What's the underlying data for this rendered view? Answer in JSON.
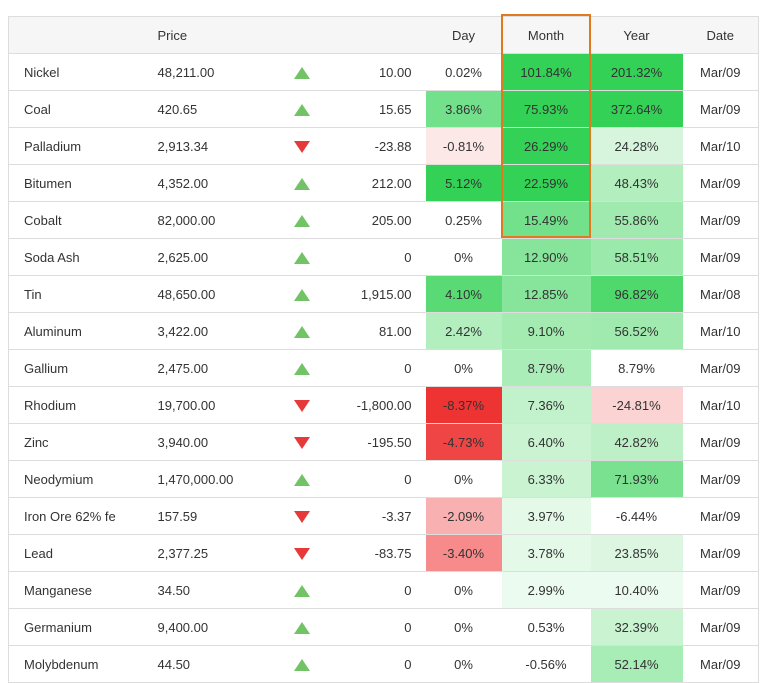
{
  "header": {
    "name": "",
    "price": "Price",
    "arrow": "",
    "change": "",
    "day": "Day",
    "month": "Month",
    "year": "Year",
    "date": "Date"
  },
  "highlight": {
    "column": "Month",
    "color": "#e07a1f"
  },
  "rows": [
    {
      "name": "Nickel",
      "price": "48,211.00",
      "dir": "up",
      "change": "10.00",
      "day": "0.02%",
      "month": "101.84%",
      "year": "201.32%",
      "date": "Mar/09",
      "day_bg": "#ffffff",
      "month_bg": "#33d155",
      "year_bg": "#33d155"
    },
    {
      "name": "Coal",
      "price": "420.65",
      "dir": "up",
      "change": "15.65",
      "day": "3.86%",
      "month": "75.93%",
      "year": "372.64%",
      "date": "Mar/09",
      "day_bg": "#73e08b",
      "month_bg": "#33d155",
      "year_bg": "#33d155"
    },
    {
      "name": "Palladium",
      "price": "2,913.34",
      "dir": "down",
      "change": "-23.88",
      "day": "-0.81%",
      "month": "26.29%",
      "year": "24.28%",
      "date": "Mar/10",
      "day_bg": "#fde8e8",
      "month_bg": "#33d155",
      "year_bg": "#d7f5dd"
    },
    {
      "name": "Bitumen",
      "price": "4,352.00",
      "dir": "up",
      "change": "212.00",
      "day": "5.12%",
      "month": "22.59%",
      "year": "48.43%",
      "date": "Mar/09",
      "day_bg": "#33d155",
      "month_bg": "#33d155",
      "year_bg": "#b3eebf"
    },
    {
      "name": "Cobalt",
      "price": "82,000.00",
      "dir": "up",
      "change": "205.00",
      "day": "0.25%",
      "month": "15.49%",
      "year": "55.86%",
      "date": "Mar/09",
      "day_bg": "#ffffff",
      "month_bg": "#73e08b",
      "year_bg": "#a0eaaf"
    },
    {
      "name": "Soda Ash",
      "price": "2,625.00",
      "dir": "up",
      "change": "0",
      "day": "0%",
      "month": "12.90%",
      "year": "58.51%",
      "date": "Mar/09",
      "day_bg": "#ffffff",
      "month_bg": "#86e59a",
      "year_bg": "#9be9ab"
    },
    {
      "name": "Tin",
      "price": "48,650.00",
      "dir": "up",
      "change": "1,915.00",
      "day": "4.10%",
      "month": "12.85%",
      "year": "96.82%",
      "date": "Mar/08",
      "day_bg": "#59da74",
      "month_bg": "#86e59a",
      "year_bg": "#4fd96c"
    },
    {
      "name": "Aluminum",
      "price": "3,422.00",
      "dir": "up",
      "change": "81.00",
      "day": "2.42%",
      "month": "9.10%",
      "year": "56.52%",
      "date": "Mar/10",
      "day_bg": "#b3eebf",
      "month_bg": "#a3ebb1",
      "year_bg": "#a0eaaf"
    },
    {
      "name": "Gallium",
      "price": "2,475.00",
      "dir": "up",
      "change": "0",
      "day": "0%",
      "month": "8.79%",
      "year": "8.79%",
      "date": "Mar/09",
      "day_bg": "#ffffff",
      "month_bg": "#abedb8",
      "year_bg": "#ffffff"
    },
    {
      "name": "Rhodium",
      "price": "19,700.00",
      "dir": "down",
      "change": "-1,800.00",
      "day": "-8.37%",
      "month": "7.36%",
      "year": "-24.81%",
      "date": "Mar/10",
      "day_bg": "#ee3333",
      "month_bg": "#c2f2cb",
      "year_bg": "#fbd3d3"
    },
    {
      "name": "Zinc",
      "price": "3,940.00",
      "dir": "down",
      "change": "-195.50",
      "day": "-4.73%",
      "month": "6.40%",
      "year": "42.82%",
      "date": "Mar/09",
      "day_bg": "#ef4545",
      "month_bg": "#c9f3d1",
      "year_bg": "#bdf0c7"
    },
    {
      "name": "Neodymium",
      "price": "1,470,000.00",
      "dir": "up",
      "change": "0",
      "day": "0%",
      "month": "6.33%",
      "year": "71.93%",
      "date": "Mar/09",
      "day_bg": "#ffffff",
      "month_bg": "#c9f3d1",
      "year_bg": "#79e190"
    },
    {
      "name": "Iron Ore 62% fe",
      "price": "157.59",
      "dir": "down",
      "change": "-3.37",
      "day": "-2.09%",
      "month": "3.97%",
      "year": "-6.44%",
      "date": "Mar/09",
      "day_bg": "#f9b0b0",
      "month_bg": "#e4f9e8",
      "year_bg": "#ffffff"
    },
    {
      "name": "Lead",
      "price": "2,377.25",
      "dir": "down",
      "change": "-83.75",
      "day": "-3.40%",
      "month": "3.78%",
      "year": "23.85%",
      "date": "Mar/09",
      "day_bg": "#f78a8a",
      "month_bg": "#e4f9e8",
      "year_bg": "#dcf6e1"
    },
    {
      "name": "Manganese",
      "price": "34.50",
      "dir": "up",
      "change": "0",
      "day": "0%",
      "month": "2.99%",
      "year": "10.40%",
      "date": "Mar/09",
      "day_bg": "#ffffff",
      "month_bg": "#ecfbef",
      "year_bg": "#ecfbef"
    },
    {
      "name": "Germanium",
      "price": "9,400.00",
      "dir": "up",
      "change": "0",
      "day": "0%",
      "month": "0.53%",
      "year": "32.39%",
      "date": "Mar/09",
      "day_bg": "#ffffff",
      "month_bg": "#ffffff",
      "year_bg": "#c9f3d1"
    },
    {
      "name": "Molybdenum",
      "price": "44.50",
      "dir": "up",
      "change": "0",
      "day": "0%",
      "month": "-0.56%",
      "year": "52.14%",
      "date": "Mar/09",
      "day_bg": "#ffffff",
      "month_bg": "#ffffff",
      "year_bg": "#a8ecb6"
    }
  ]
}
